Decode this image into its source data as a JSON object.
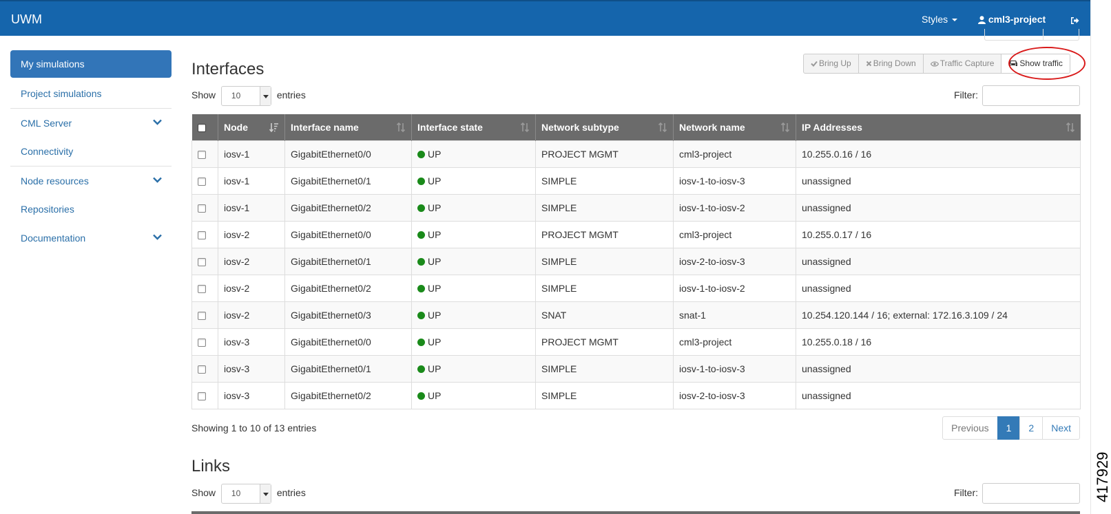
{
  "navbar": {
    "brand": "UWM",
    "styles_label": "Styles",
    "user_label": "cml3-project",
    "colors": {
      "bar": "#1565ac"
    }
  },
  "sidebar": {
    "items": [
      {
        "label": "My simulations",
        "active": true
      },
      {
        "label": "Project simulations"
      },
      {
        "label": "CML Server",
        "expandable": true
      },
      {
        "label": "Connectivity"
      },
      {
        "label": "Node resources",
        "expandable": true
      },
      {
        "label": "Repositories"
      },
      {
        "label": "Documentation",
        "expandable": true
      }
    ]
  },
  "interfaces": {
    "title": "Interfaces",
    "actions": {
      "bring_up": "Bring Up",
      "bring_down": "Bring Down",
      "traffic_capture": "Traffic Capture",
      "show_traffic": "Show traffic"
    },
    "length": {
      "show": "Show",
      "value": "10",
      "entries": "entries"
    },
    "filter_label": "Filter:",
    "columns": [
      "Node",
      "Interface name",
      "Interface state",
      "Network subtype",
      "Network name",
      "IP Addresses"
    ],
    "rows": [
      [
        "iosv-1",
        "GigabitEthernet0/0",
        "UP",
        "PROJECT MGMT",
        "cml3-project",
        "10.255.0.16 / 16"
      ],
      [
        "iosv-1",
        "GigabitEthernet0/1",
        "UP",
        "SIMPLE",
        "iosv-1-to-iosv-3",
        "unassigned"
      ],
      [
        "iosv-1",
        "GigabitEthernet0/2",
        "UP",
        "SIMPLE",
        "iosv-1-to-iosv-2",
        "unassigned"
      ],
      [
        "iosv-2",
        "GigabitEthernet0/0",
        "UP",
        "PROJECT MGMT",
        "cml3-project",
        "10.255.0.17 / 16"
      ],
      [
        "iosv-2",
        "GigabitEthernet0/1",
        "UP",
        "SIMPLE",
        "iosv-2-to-iosv-3",
        "unassigned"
      ],
      [
        "iosv-2",
        "GigabitEthernet0/2",
        "UP",
        "SIMPLE",
        "iosv-1-to-iosv-2",
        "unassigned"
      ],
      [
        "iosv-2",
        "GigabitEthernet0/3",
        "UP",
        "SNAT",
        "snat-1",
        "10.254.120.144 / 16; external: 172.16.3.109 / 24"
      ],
      [
        "iosv-3",
        "GigabitEthernet0/0",
        "UP",
        "PROJECT MGMT",
        "cml3-project",
        "10.255.0.18 / 16"
      ],
      [
        "iosv-3",
        "GigabitEthernet0/1",
        "UP",
        "SIMPLE",
        "iosv-1-to-iosv-3",
        "unassigned"
      ],
      [
        "iosv-3",
        "GigabitEthernet0/2",
        "UP",
        "SIMPLE",
        "iosv-2-to-iosv-3",
        "unassigned"
      ]
    ],
    "status_color": "#1a8a1a",
    "info": "Showing 1 to 10 of 13 entries",
    "pagination": {
      "previous": "Previous",
      "pages": [
        "1",
        "2"
      ],
      "next": "Next"
    }
  },
  "links": {
    "title": "Links",
    "length": {
      "show": "Show",
      "value": "10",
      "entries": "entries"
    },
    "filter_label": "Filter:"
  },
  "figure_id": "417929"
}
